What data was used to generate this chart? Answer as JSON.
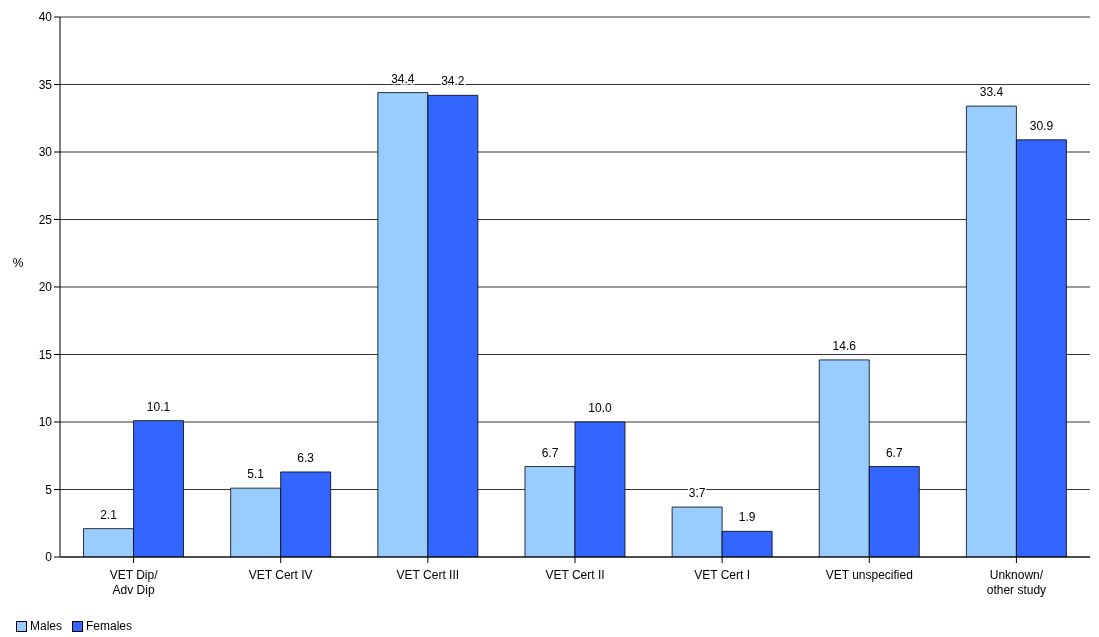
{
  "chart_data": {
    "type": "bar",
    "ylabel": "%",
    "categories": [
      "VET Dip/ Adv Dip",
      "VET Cert IV",
      "VET Cert III",
      "VET Cert II",
      "VET Cert I",
      "VET unspecified",
      "Unknown/ other study"
    ],
    "series": [
      {
        "name": "Males",
        "color": "#99ccff",
        "values": [
          2.1,
          5.1,
          34.4,
          6.7,
          3.7,
          14.6,
          33.4
        ],
        "value_labels": [
          "2.1",
          "5.1",
          "34.4",
          "6.7",
          "3.7",
          "14.6",
          "33.4"
        ]
      },
      {
        "name": "Females",
        "color": "#3366ff",
        "values": [
          10.1,
          6.3,
          34.2,
          10.0,
          1.9,
          6.7,
          30.9
        ],
        "value_labels": [
          "10.1",
          "6.3",
          "34.2",
          "10.0",
          "1.9",
          "6.7",
          "30.9"
        ]
      }
    ],
    "ylim": [
      0,
      40
    ],
    "yticks": [
      0,
      5,
      10,
      15,
      20,
      25,
      30,
      35,
      40
    ],
    "grid": "y",
    "legend": "bottom left"
  }
}
